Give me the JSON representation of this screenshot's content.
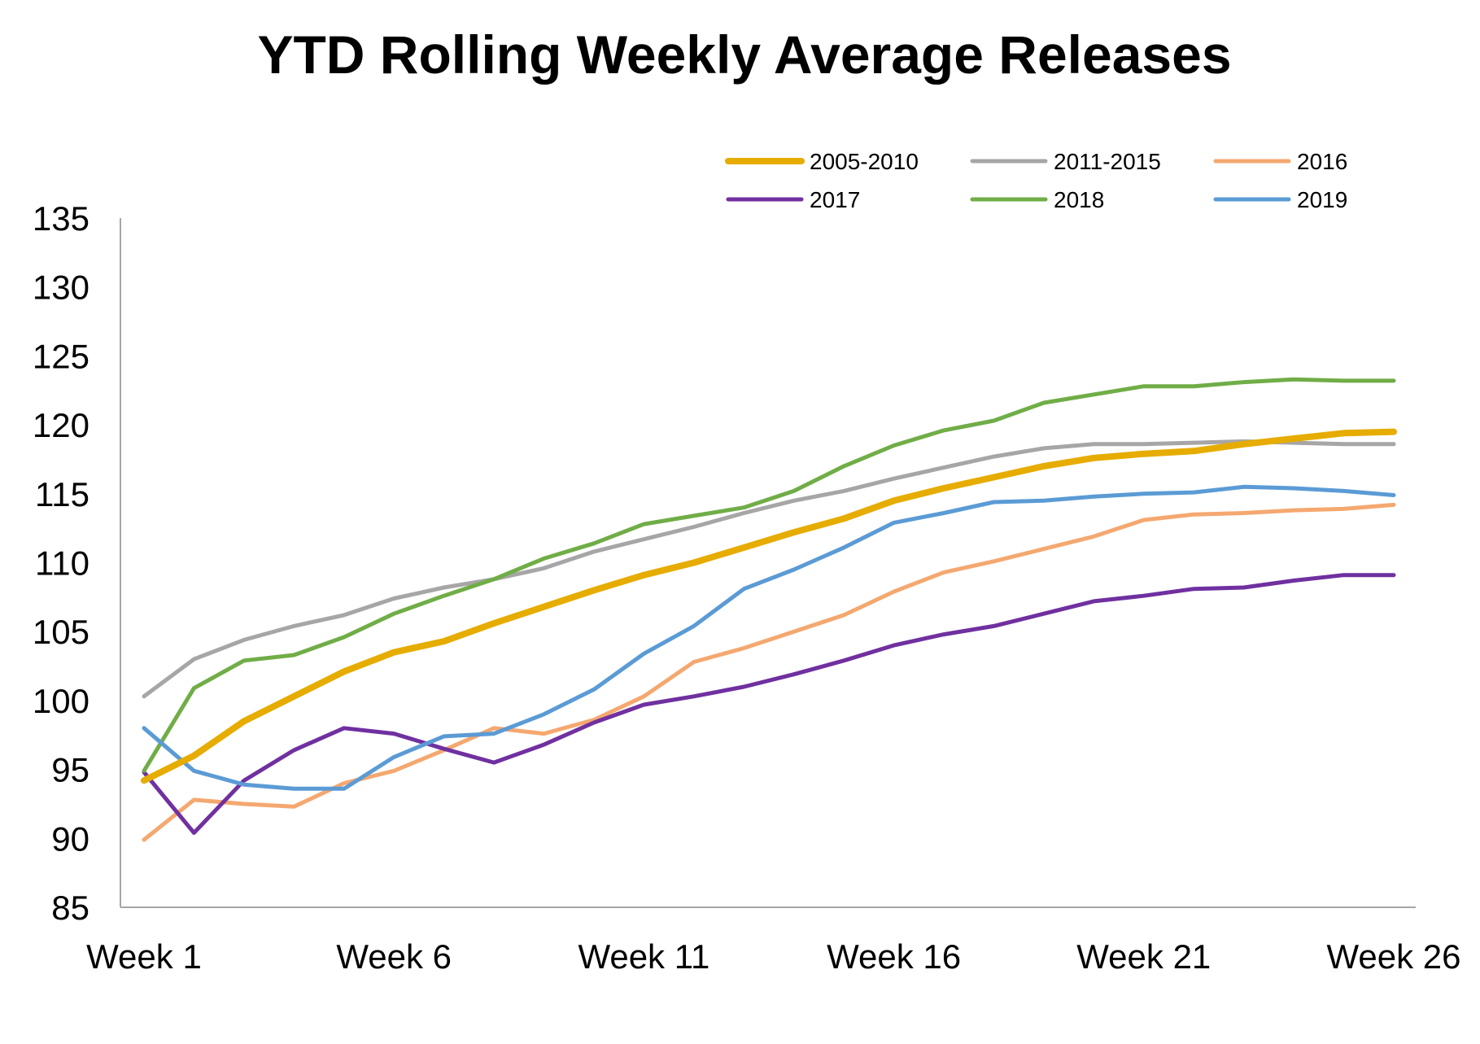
{
  "chart_data": {
    "type": "line",
    "title": "YTD Rolling Weekly Average Releases",
    "xlabel": "",
    "ylabel": "",
    "ylim": [
      85,
      135
    ],
    "yticks": [
      85,
      90,
      95,
      100,
      105,
      110,
      115,
      120,
      125,
      130,
      135
    ],
    "x": [
      1,
      2,
      3,
      4,
      5,
      6,
      7,
      8,
      9,
      10,
      11,
      12,
      13,
      14,
      15,
      16,
      17,
      18,
      19,
      20,
      21,
      22,
      23,
      24,
      25,
      26
    ],
    "x_tick_labels": [
      {
        "week": 1,
        "label": "Week 1"
      },
      {
        "week": 6,
        "label": "Week 6"
      },
      {
        "week": 11,
        "label": "Week 11"
      },
      {
        "week": 16,
        "label": "Week 16"
      },
      {
        "week": 21,
        "label": "Week 21"
      },
      {
        "week": 26,
        "label": "Week 26"
      }
    ],
    "legend_position": "top-right",
    "grid": false,
    "series": [
      {
        "name": "2005-2010",
        "color": "#e6ac00",
        "width": 8,
        "values": [
          94.2,
          96.0,
          98.5,
          100.3,
          102.1,
          103.5,
          104.3,
          105.6,
          106.8,
          108.0,
          109.1,
          110.0,
          111.1,
          112.2,
          113.2,
          114.5,
          115.4,
          116.2,
          117.0,
          117.6,
          117.9,
          118.1,
          118.6,
          119.0,
          119.4,
          119.5
        ]
      },
      {
        "name": "2011-2015",
        "color": "#a6a6a6",
        "width": 5,
        "values": [
          100.3,
          103.0,
          104.4,
          105.4,
          106.2,
          107.4,
          108.2,
          108.8,
          109.6,
          110.8,
          111.7,
          112.6,
          113.6,
          114.5,
          115.2,
          116.1,
          116.9,
          117.7,
          118.3,
          118.6,
          118.6,
          118.7,
          118.8,
          118.7,
          118.6,
          118.6
        ]
      },
      {
        "name": "2016",
        "color": "#f4a870",
        "width": 5,
        "values": [
          89.9,
          92.8,
          92.5,
          92.3,
          94.0,
          94.9,
          96.4,
          98.0,
          97.6,
          98.6,
          100.3,
          102.8,
          103.8,
          105.0,
          106.2,
          107.9,
          109.3,
          110.1,
          111.0,
          111.9,
          113.1,
          113.5,
          113.6,
          113.8,
          113.9,
          114.2
        ]
      },
      {
        "name": "2017",
        "color": "#7030a0",
        "width": 5,
        "values": [
          94.8,
          90.4,
          94.2,
          96.4,
          98.0,
          97.6,
          96.5,
          95.5,
          96.8,
          98.4,
          99.7,
          100.3,
          101.0,
          101.9,
          102.9,
          104.0,
          104.8,
          105.4,
          106.3,
          107.2,
          107.6,
          108.1,
          108.2,
          108.7,
          109.1,
          109.1
        ]
      },
      {
        "name": "2018",
        "color": "#70ad47",
        "width": 5,
        "values": [
          94.9,
          100.9,
          102.9,
          103.3,
          104.6,
          106.3,
          107.6,
          108.8,
          110.3,
          111.4,
          112.8,
          113.4,
          114.0,
          115.2,
          117.0,
          118.5,
          119.6,
          120.3,
          121.6,
          122.2,
          122.8,
          122.8,
          123.1,
          123.3,
          123.2,
          123.2
        ]
      },
      {
        "name": "2019",
        "color": "#5b9bd5",
        "width": 5,
        "values": [
          98.0,
          94.9,
          93.9,
          93.6,
          93.6,
          95.9,
          97.4,
          97.6,
          99.0,
          100.8,
          103.4,
          105.4,
          108.1,
          109.5,
          111.1,
          112.9,
          113.6,
          114.4,
          114.5,
          114.8,
          115.0,
          115.1,
          115.5,
          115.4,
          115.2,
          114.9
        ]
      }
    ]
  }
}
